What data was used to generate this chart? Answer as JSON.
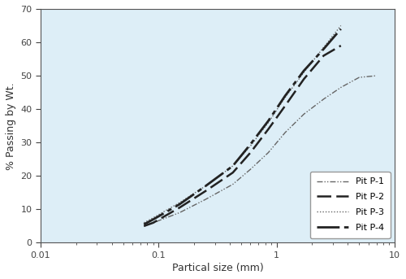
{
  "title": "",
  "xlabel": "Partical size (mm)",
  "ylabel": "% Passing by Wt.",
  "xlim": [
    0.01,
    10
  ],
  "ylim": [
    0,
    70
  ],
  "yticks": [
    0,
    10,
    20,
    30,
    40,
    50,
    60,
    70
  ],
  "background_color": "#ddeef7",
  "pit1_x": [
    0.075,
    0.09,
    0.15,
    0.25,
    0.425,
    0.6,
    0.85,
    1.18,
    1.7,
    2.5,
    3.5,
    5.0,
    7.0
  ],
  "pit1_y": [
    5.0,
    6.0,
    9.0,
    13.0,
    17.5,
    22.0,
    27.0,
    33.0,
    38.5,
    43.0,
    46.5,
    49.5,
    50.0
  ],
  "pit2_x": [
    0.075,
    0.09,
    0.15,
    0.25,
    0.425,
    0.6,
    0.85,
    1.18,
    1.7,
    2.5,
    3.5
  ],
  "pit2_y": [
    5.0,
    6.0,
    10.5,
    15.5,
    21.0,
    27.0,
    34.0,
    41.0,
    49.0,
    56.0,
    59.0
  ],
  "pit3_x": [
    0.075,
    0.09,
    0.15,
    0.25,
    0.425,
    0.6,
    0.85,
    1.18,
    1.7,
    2.5,
    3.5
  ],
  "pit3_y": [
    6.0,
    7.5,
    12.0,
    17.0,
    23.0,
    29.0,
    36.0,
    43.5,
    51.0,
    58.5,
    65.0
  ],
  "pit4_x": [
    0.075,
    0.09,
    0.15,
    0.25,
    0.425,
    0.6,
    0.85,
    1.18,
    1.7,
    2.5,
    3.5
  ],
  "pit4_y": [
    5.5,
    7.0,
    11.5,
    17.0,
    23.0,
    29.5,
    36.5,
    44.0,
    51.5,
    58.0,
    64.0
  ],
  "line_color": "#222222",
  "legend_labels": [
    "Pit P-1",
    "Pit P-2",
    "Pit P-3",
    "Pit P-4"
  ],
  "legend_loc": "lower right"
}
